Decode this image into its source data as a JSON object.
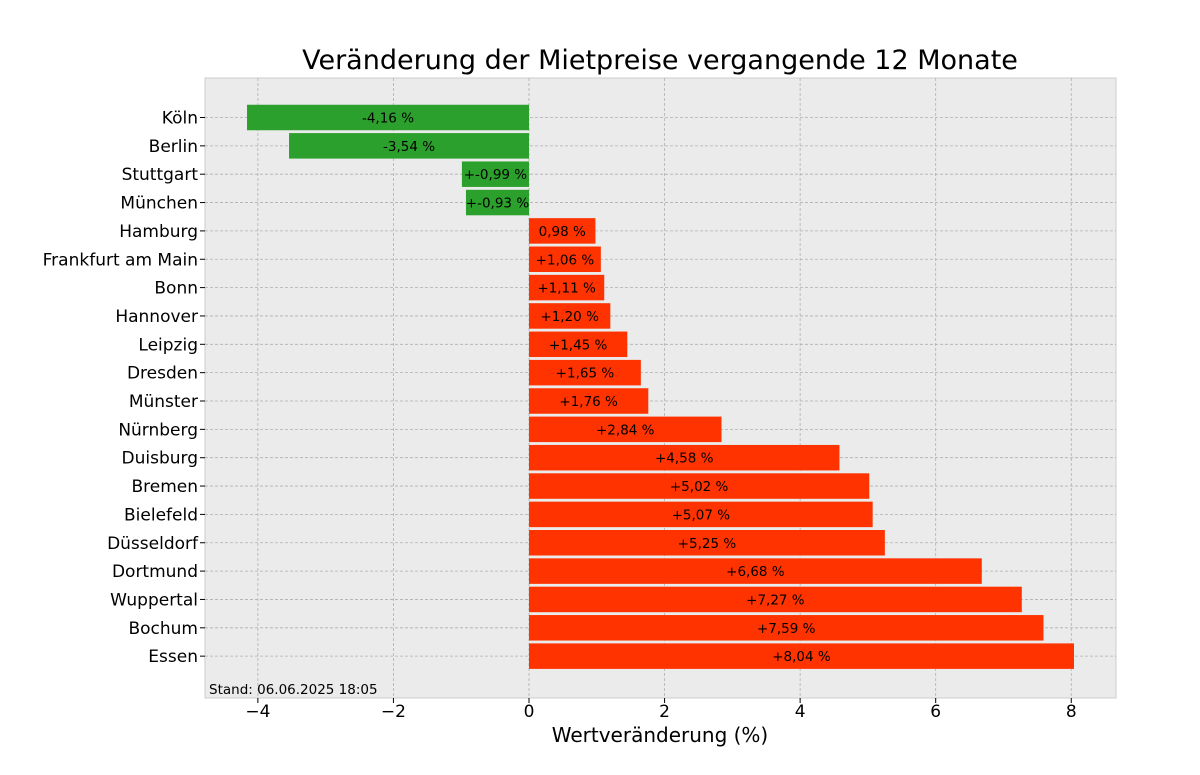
{
  "chart_data": {
    "type": "bar",
    "orientation": "horizontal",
    "title": "Veränderung der Mietpreise vergangende 12 Monate",
    "xlabel": "Wertveränderung (%)",
    "ylabel": "",
    "xlim": [
      -4.78,
      8.66
    ],
    "xticks": [
      -4,
      -2,
      0,
      2,
      4,
      6,
      8
    ],
    "xtick_labels": [
      "−4",
      "−2",
      "0",
      "2",
      "4",
      "6",
      "8"
    ],
    "grid": true,
    "footnote": "Stand: 06.06.2025 18:05",
    "colors": {
      "negative": "#2ca02c",
      "positive": "#ff3300",
      "background": "#ebebeb"
    },
    "categories": [
      "Köln",
      "Berlin",
      "Stuttgart",
      "München",
      "Hamburg",
      "Frankfurt am Main",
      "Bonn",
      "Hannover",
      "Leipzig",
      "Dresden",
      "Münster",
      "Nürnberg",
      "Duisburg",
      "Bremen",
      "Bielefeld",
      "Düsseldorf",
      "Dortmund",
      "Wuppertal",
      "Bochum",
      "Essen"
    ],
    "values": [
      -4.16,
      -3.54,
      -0.99,
      -0.93,
      0.98,
      1.06,
      1.11,
      1.2,
      1.45,
      1.65,
      1.76,
      2.84,
      4.58,
      5.02,
      5.07,
      5.25,
      6.68,
      7.27,
      7.59,
      8.04
    ],
    "labels": [
      "-4,16 %",
      "-3,54 %",
      "+-0,99 %",
      "+-0,93 %",
      "0,98 %",
      "+1,06 %",
      "+1,11 %",
      "+1,20 %",
      "+1,45 %",
      "+1,65 %",
      "+1,76 %",
      "+2,84 %",
      "+4,58 %",
      "+5,02 %",
      "+5,07 %",
      "+5,25 %",
      "+6,68 %",
      "+7,27 %",
      "+7,59 %",
      "+8,04 %"
    ]
  }
}
